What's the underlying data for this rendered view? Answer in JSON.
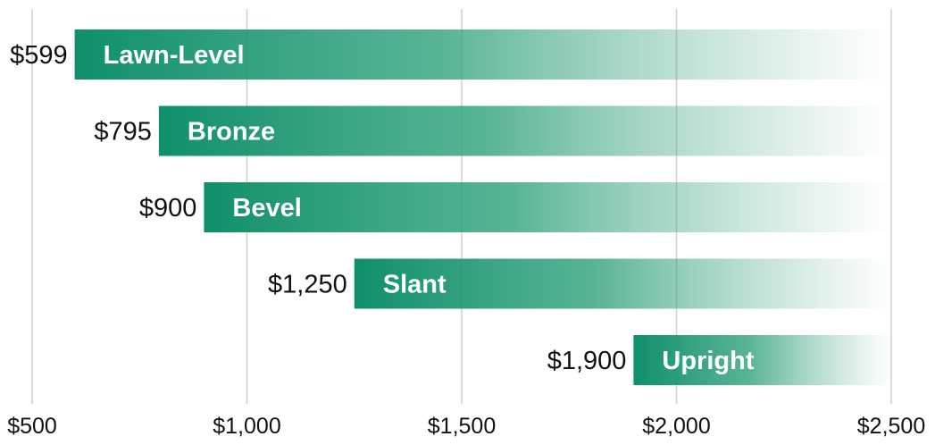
{
  "chart_data": {
    "type": "bar",
    "orientation": "horizontal",
    "categories": [
      "Lawn-Level",
      "Bronze",
      "Bevel",
      "Slant",
      "Upright"
    ],
    "values": [
      599,
      795,
      900,
      1250,
      1900
    ],
    "value_labels": [
      "$599",
      "$795",
      "$900",
      "$1,250",
      "$1,900"
    ],
    "xlim": [
      500,
      2500
    ],
    "x_ticks": [
      500,
      1000,
      1500,
      2000,
      2500
    ],
    "x_tick_labels": [
      "$500",
      "$1,000",
      "$1,500",
      "$2,000",
      "$2,500"
    ],
    "grid": true,
    "bar_color": "#0f8f6b",
    "grid_color": "#cfcfcf"
  }
}
